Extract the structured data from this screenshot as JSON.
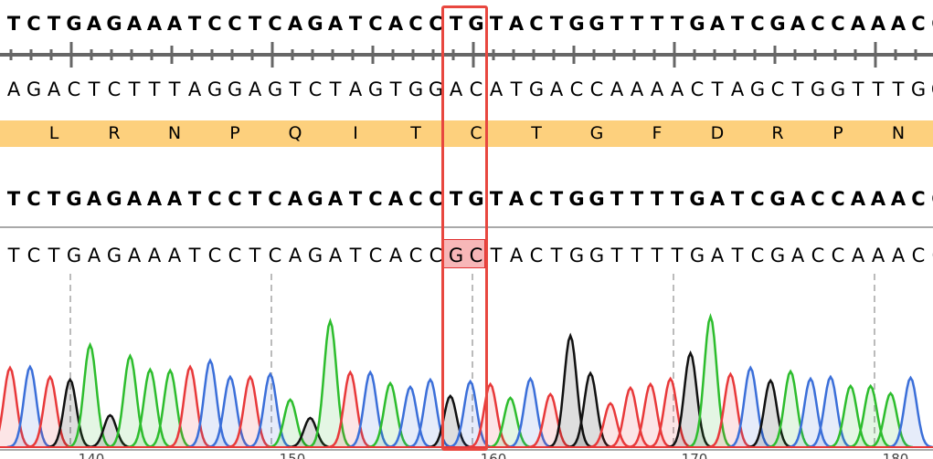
{
  "reference_top": "TCTGAGAAATCCTCAGATCACCTGTACTGGTTTTGATCGACCAAACC",
  "complement_strand": "AGACTCTTTAGGAGTCTAGTGGACATGACCAAAACTAGCTGGTTTGG",
  "translation": [
    "L",
    "R",
    "N",
    "P",
    "Q",
    "I",
    "T",
    "C",
    "T",
    "G",
    "F",
    "D",
    "R",
    "P",
    "N"
  ],
  "reference_aligned": "TCTGAGAAATCCTCAGATCACCTGTACTGGTTTTGATCGACCAAACC",
  "read_sequence": "TCTGAGAAATCCTCAGATCACCGCTACTGGTTTTGATCGACCAAACC",
  "mismatch_highlight": {
    "bases": "GC",
    "reference": "TG",
    "read_indices": [
      22,
      23
    ]
  },
  "translation_band_color": "#fdd07d",
  "selection_color": "#e8473f",
  "base_colors": {
    "A": "#2dbd2d",
    "C": "#3b6fd9",
    "G": "#111111",
    "T": "#e8393a"
  },
  "chromatogram": {
    "bases": "TCTGAGAAATCCTCAGATCACCGCTACTGGTTTTGATCGACCAAAC",
    "intensities": [
      87,
      88,
      77,
      74,
      112,
      35,
      100,
      85,
      84,
      88,
      95,
      77,
      77,
      80,
      52,
      32,
      138,
      82,
      82,
      70,
      66,
      74,
      56,
      72,
      69,
      54,
      75,
      58,
      122,
      81,
      48,
      65,
      69,
      75,
      103,
      143,
      80,
      87,
      73,
      83,
      75,
      77,
      67,
      67,
      59,
      76
    ],
    "axis_labels": [
      "140",
      "150",
      "160",
      "170",
      "180"
    ]
  }
}
